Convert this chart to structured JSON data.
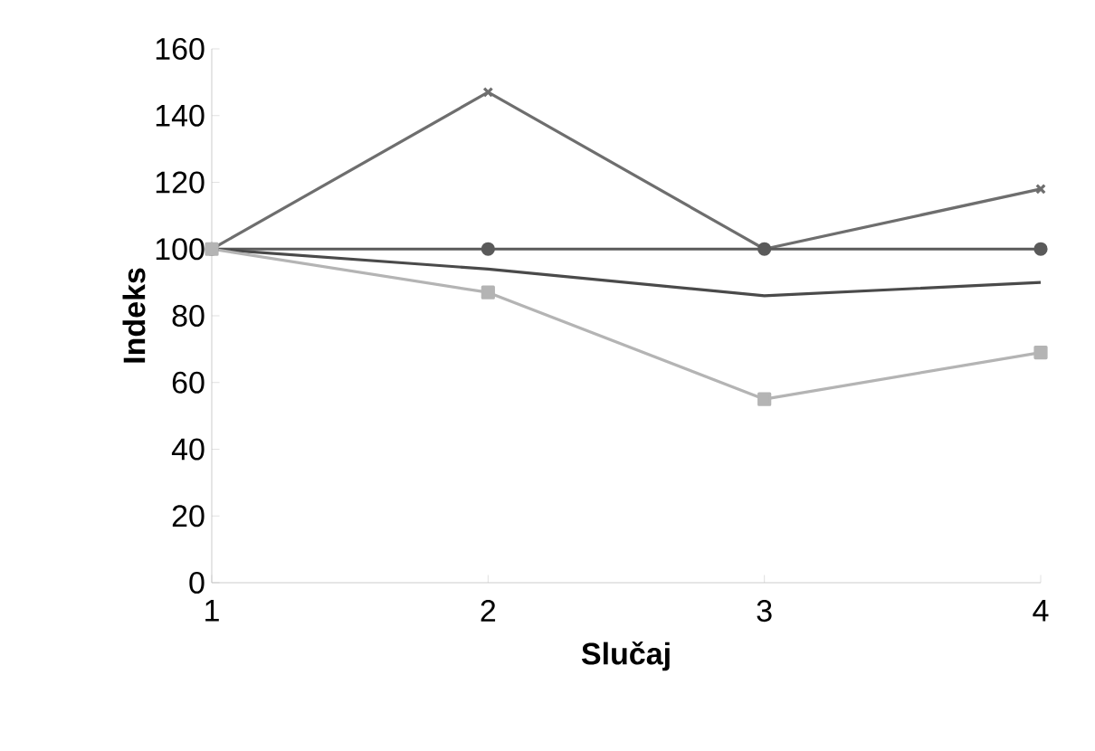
{
  "chart_data": {
    "type": "line",
    "xlabel": "Slučaj",
    "ylabel": "Indeks",
    "x": [
      1,
      2,
      3,
      4
    ],
    "xlim": [
      1,
      4
    ],
    "xticks": [
      1,
      2,
      3,
      4
    ],
    "ylim": [
      0,
      160
    ],
    "yticks": [
      0,
      20,
      40,
      60,
      80,
      100,
      120,
      140,
      160
    ],
    "series": [
      {
        "color": "#6e6e6e",
        "marker": "cross",
        "values": [
          100,
          147,
          100,
          118
        ]
      },
      {
        "color": "#5a5a5a",
        "marker": "circle",
        "values": [
          100,
          100,
          100,
          100
        ]
      },
      {
        "color": "#4a4a4a",
        "marker": "none",
        "values": [
          100,
          94,
          86,
          90
        ]
      },
      {
        "color": "#b4b4b4",
        "marker": "square",
        "values": [
          100,
          87,
          55,
          69
        ]
      }
    ]
  }
}
